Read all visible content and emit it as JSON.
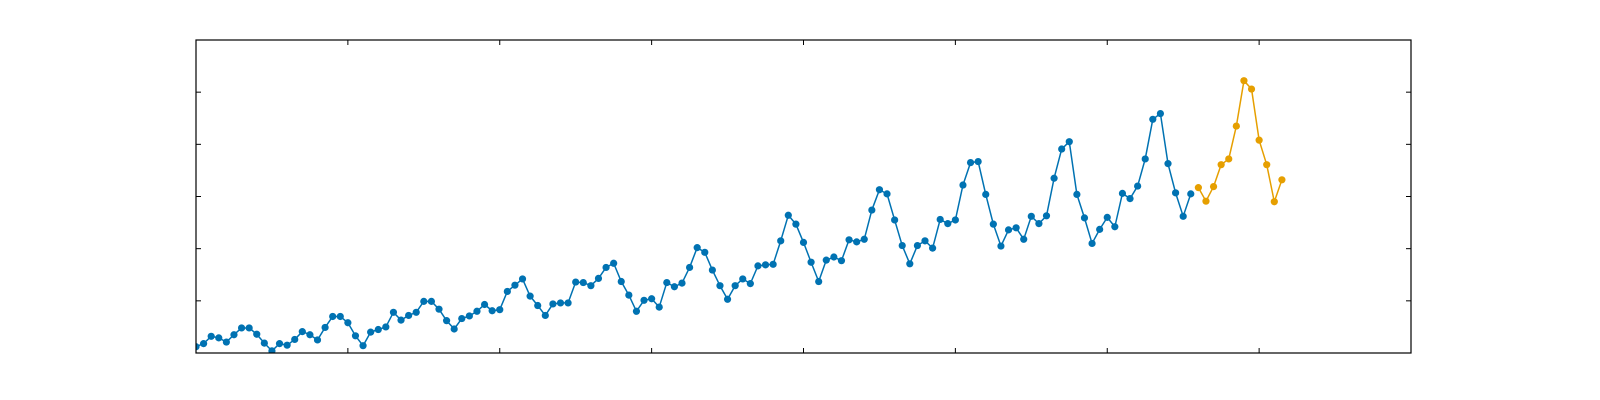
{
  "chart_data": {
    "type": "line",
    "title": "",
    "xlabel": "",
    "ylabel": "",
    "grid": false,
    "xlim": [
      0,
      160
    ],
    "ylim": [
      100,
      700
    ],
    "x_ticks": [
      0,
      20,
      40,
      60,
      80,
      100,
      120,
      140
    ],
    "y_ticks": [
      200,
      300,
      400,
      500,
      600
    ],
    "series": [
      {
        "color": "#0072b2",
        "marker": "circle",
        "x": [
          0,
          1,
          2,
          3,
          4,
          5,
          6,
          7,
          8,
          9,
          10,
          11,
          12,
          13,
          14,
          15,
          16,
          17,
          18,
          19,
          20,
          21,
          22,
          23,
          24,
          25,
          26,
          27,
          28,
          29,
          30,
          31,
          32,
          33,
          34,
          35,
          36,
          37,
          38,
          39,
          40,
          41,
          42,
          43,
          44,
          45,
          46,
          47,
          48,
          49,
          50,
          51,
          52,
          53,
          54,
          55,
          56,
          57,
          58,
          59,
          60,
          61,
          62,
          63,
          64,
          65,
          66,
          67,
          68,
          69,
          70,
          71,
          72,
          73,
          74,
          75,
          76,
          77,
          78,
          79,
          80,
          81,
          82,
          83,
          84,
          85,
          86,
          87,
          88,
          89,
          90,
          91,
          92,
          93,
          94,
          95,
          96,
          97,
          98,
          99,
          100,
          101,
          102,
          103,
          104,
          105,
          106,
          107,
          108,
          109,
          110,
          111,
          112,
          113,
          114,
          115,
          116,
          117,
          118,
          119,
          120,
          121,
          122,
          123,
          124,
          125,
          126,
          127,
          128,
          129,
          130,
          131
        ],
        "values": [
          112,
          118,
          132,
          129,
          121,
          135,
          148,
          148,
          136,
          119,
          104,
          118,
          115,
          126,
          141,
          135,
          125,
          149,
          170,
          170,
          158,
          133,
          114,
          140,
          145,
          150,
          178,
          163,
          172,
          178,
          199,
          199,
          184,
          162,
          146,
          166,
          171,
          180,
          193,
          181,
          183,
          218,
          230,
          242,
          209,
          191,
          172,
          194,
          196,
          196,
          236,
          235,
          229,
          243,
          264,
          272,
          237,
          211,
          180,
          201,
          204,
          188,
          235,
          227,
          234,
          264,
          302,
          293,
          259,
          229,
          203,
          229,
          242,
          233,
          267,
          269,
          270,
          315,
          364,
          347,
          312,
          274,
          237,
          278,
          284,
          277,
          317,
          313,
          318,
          374,
          413,
          405,
          355,
          306,
          271,
          306,
          315,
          301,
          356,
          348,
          355,
          422,
          465,
          467,
          404,
          347,
          305,
          336,
          340,
          318,
          362,
          348,
          363,
          435,
          491,
          505,
          404,
          359,
          310,
          337,
          360,
          342,
          406,
          396,
          420,
          472,
          548,
          559,
          463,
          407,
          362,
          405
        ]
      },
      {
        "color": "#e69f00",
        "marker": "circle",
        "x": [
          132,
          133,
          134,
          135,
          136,
          137,
          138,
          139,
          140,
          141,
          142,
          143
        ],
        "values": [
          417,
          391,
          419,
          461,
          472,
          535,
          622,
          606,
          508,
          461,
          390,
          432
        ]
      }
    ]
  }
}
